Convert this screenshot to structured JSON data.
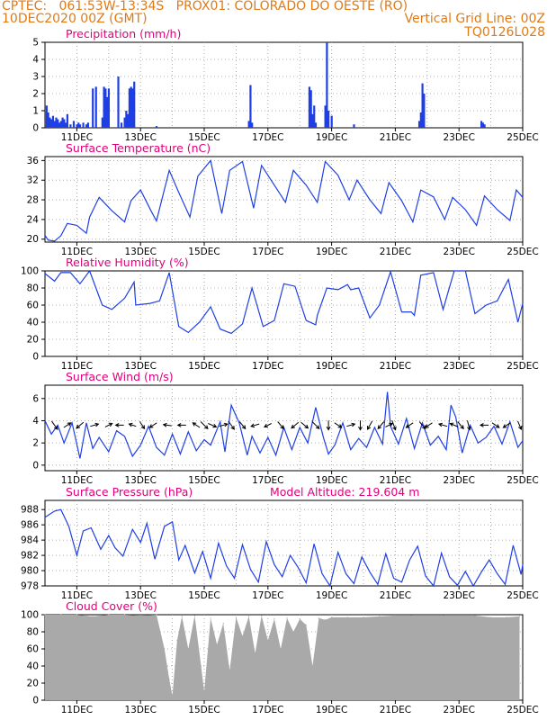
{
  "header": {
    "line1_left": "CPTEC:   061:53W-13:34S   PROX01: COLORADO DO OESTE (RO)",
    "line2_left": "10DEC2020 00Z (GMT)",
    "line2_right": "Vertical Grid Line: 00Z",
    "line3_right": "TQ0126L028"
  },
  "colors": {
    "header": "#e07a16",
    "title": "#e0007a",
    "series": "#1f3fe6",
    "cloud": "#a9a9a9",
    "arrow": "#000000",
    "grid": "#9a9a9a"
  },
  "chart_data": [
    {
      "type": "bar",
      "title": "Precipitation (mm/h)",
      "ylim": [
        0,
        5
      ],
      "yticks": [
        "0",
        "1",
        "2",
        "3",
        "4",
        "5"
      ],
      "xticks": [
        "11DEC",
        "13DEC",
        "15DEC",
        "17DEC",
        "19DEC",
        "21DEC",
        "23DEC",
        "25DEC"
      ],
      "xlim_days": [
        10,
        25
      ],
      "x_days": [
        10.05,
        10.1,
        10.15,
        10.2,
        10.25,
        10.3,
        10.35,
        10.4,
        10.45,
        10.5,
        10.55,
        10.6,
        10.65,
        10.7,
        10.8,
        10.9,
        11.0,
        11.05,
        11.1,
        11.2,
        11.3,
        11.35,
        11.5,
        11.6,
        11.8,
        11.85,
        11.9,
        11.95,
        12.0,
        12.3,
        12.4,
        12.5,
        12.55,
        12.6,
        12.65,
        12.7,
        12.75,
        12.8,
        13.5,
        16.4,
        16.45,
        16.5,
        18.3,
        18.35,
        18.4,
        18.45,
        18.5,
        18.8,
        18.85,
        18.9,
        19.0,
        19.7,
        21.75,
        21.8,
        21.85,
        21.9,
        23.7,
        23.75,
        23.8
      ],
      "values": [
        1.3,
        0.9,
        0.6,
        0.5,
        0.7,
        0.4,
        0.6,
        0.5,
        0.3,
        0.4,
        0.6,
        0.5,
        0.3,
        0.8,
        0.2,
        0.4,
        0.2,
        0.3,
        0.2,
        0.3,
        0.2,
        0.3,
        2.3,
        2.4,
        0.6,
        2.4,
        2.3,
        1.8,
        2.3,
        3.0,
        0.3,
        0.6,
        1.0,
        0.8,
        2.3,
        2.4,
        2.3,
        2.7,
        0.1,
        0.4,
        2.5,
        0.3,
        2.4,
        2.2,
        0.8,
        1.3,
        0.3,
        1.3,
        5.0,
        1.0,
        0.7,
        0.2,
        0.4,
        0.9,
        2.6,
        2.0,
        0.4,
        0.3,
        0.2
      ]
    },
    {
      "type": "line",
      "title": "Surface Temperature (nC)",
      "ylim": [
        19.4,
        36.8
      ],
      "yticks": [
        "20",
        "24",
        "28",
        "32",
        "36"
      ],
      "xticks": [
        "11DEC",
        "13DEC",
        "15DEC",
        "17DEC",
        "19DEC",
        "21DEC",
        "23DEC",
        "25DEC"
      ],
      "x_days": [
        10.0,
        10.1,
        10.3,
        10.5,
        10.7,
        11.0,
        11.3,
        11.4,
        11.7,
        12.1,
        12.5,
        12.7,
        13.0,
        13.35,
        13.5,
        13.9,
        14.2,
        14.55,
        14.8,
        15.2,
        15.55,
        15.8,
        16.2,
        16.55,
        16.8,
        17.2,
        17.55,
        17.8,
        18.2,
        18.55,
        18.8,
        19.2,
        19.55,
        19.8,
        20.2,
        20.55,
        20.8,
        21.2,
        21.55,
        21.8,
        22.2,
        22.55,
        22.8,
        23.2,
        23.55,
        23.8,
        24.2,
        24.6,
        24.8,
        25.0
      ],
      "values": [
        20.8,
        19.8,
        19.6,
        20.7,
        23.2,
        22.8,
        21.2,
        24.5,
        28.5,
        25.8,
        23.5,
        27.8,
        30.0,
        25.5,
        23.7,
        34.0,
        29.5,
        24.5,
        32.8,
        36.0,
        25.2,
        34.0,
        35.8,
        26.3,
        35.0,
        31.0,
        27.5,
        34.0,
        31.0,
        27.5,
        35.8,
        33.0,
        28.0,
        32.0,
        28.0,
        25.2,
        31.5,
        27.8,
        23.5,
        30.0,
        28.6,
        24.0,
        28.5,
        26.0,
        22.8,
        28.8,
        26.0,
        23.8,
        30.0,
        28.5
      ]
    },
    {
      "type": "line",
      "title": "Relative Humidity (%)",
      "ylim": [
        0,
        100
      ],
      "yticks": [
        "0",
        "20",
        "40",
        "60",
        "80",
        "100"
      ],
      "xticks": [
        "11DEC",
        "13DEC",
        "15DEC",
        "17DEC",
        "19DEC",
        "21DEC",
        "23DEC",
        "25DEC"
      ],
      "x_days": [
        10.0,
        10.3,
        10.5,
        10.8,
        11.1,
        11.4,
        11.8,
        12.1,
        12.5,
        12.8,
        12.85,
        13.3,
        13.6,
        13.9,
        14.2,
        14.5,
        14.85,
        15.2,
        15.5,
        15.85,
        16.2,
        16.5,
        16.85,
        17.2,
        17.5,
        17.85,
        18.2,
        18.5,
        18.55,
        18.85,
        19.2,
        19.5,
        19.6,
        19.85,
        20.2,
        20.5,
        20.85,
        21.2,
        21.5,
        21.6,
        21.8,
        22.2,
        22.5,
        22.85,
        23.2,
        23.5,
        23.85,
        24.2,
        24.55,
        24.85,
        25.0
      ],
      "values": [
        97,
        88,
        98,
        98,
        85,
        100,
        60,
        55,
        68,
        87,
        60,
        62,
        65,
        98,
        35,
        28,
        40,
        58,
        32,
        27,
        38,
        80,
        35,
        42,
        85,
        82,
        42,
        37,
        48,
        80,
        78,
        84,
        78,
        80,
        45,
        60,
        99,
        52,
        52,
        48,
        95,
        98,
        55,
        100,
        100,
        50,
        60,
        65,
        90,
        40,
        62
      ]
    },
    {
      "type": "line",
      "title": "Surface Wind (m/s)",
      "ylim": [
        -0.5,
        7.2
      ],
      "yticks": [
        "0",
        "2",
        "4",
        "6"
      ],
      "xticks": [
        "11DEC",
        "13DEC",
        "15DEC",
        "17DEC",
        "19DEC",
        "21DEC",
        "23DEC",
        "25DEC"
      ],
      "x_days": [
        10.0,
        10.2,
        10.4,
        10.6,
        10.85,
        11.1,
        11.3,
        11.5,
        11.7,
        12.0,
        12.25,
        12.5,
        12.75,
        13.0,
        13.25,
        13.5,
        13.75,
        14.0,
        14.25,
        14.5,
        14.75,
        15.0,
        15.2,
        15.5,
        15.65,
        15.85,
        16.1,
        16.35,
        16.5,
        16.75,
        17.0,
        17.25,
        17.5,
        17.75,
        18.0,
        18.25,
        18.5,
        18.75,
        18.9,
        19.1,
        19.35,
        19.6,
        19.85,
        20.1,
        20.35,
        20.6,
        20.75,
        20.85,
        21.1,
        21.35,
        21.6,
        21.85,
        22.1,
        22.35,
        22.6,
        22.75,
        22.9,
        23.1,
        23.35,
        23.6,
        23.85,
        24.1,
        24.35,
        24.6,
        24.85,
        25.0
      ],
      "values": [
        4.0,
        2.8,
        3.6,
        2.0,
        3.8,
        0.6,
        3.8,
        1.5,
        2.5,
        1.2,
        3.1,
        2.6,
        0.8,
        1.8,
        3.5,
        1.6,
        0.9,
        2.8,
        1.0,
        3.0,
        1.3,
        2.3,
        1.8,
        3.9,
        1.2,
        5.4,
        3.8,
        0.9,
        2.6,
        1.1,
        2.5,
        0.9,
        3.4,
        1.4,
        3.4,
        2.0,
        5.2,
        2.4,
        1.0,
        1.8,
        3.8,
        1.4,
        2.4,
        1.6,
        3.4,
        1.9,
        6.6,
        3.5,
        1.9,
        4.2,
        1.5,
        3.8,
        1.8,
        2.6,
        1.4,
        5.4,
        4.3,
        1.1,
        3.6,
        2.0,
        2.5,
        3.5,
        1.9,
        3.9,
        1.6,
        2.2
      ],
      "arrows": [
        {
          "x": 10.3,
          "u": 0.25,
          "v": -0.35
        },
        {
          "x": 10.7,
          "u": 0.3,
          "v": 0.2
        },
        {
          "x": 11.1,
          "u": -0.3,
          "v": -0.25
        },
        {
          "x": 11.55,
          "u": 0.35,
          "v": 0.1
        },
        {
          "x": 12.0,
          "u": 0.3,
          "v": 0.15
        },
        {
          "x": 12.35,
          "u": -0.35,
          "v": 0.0
        },
        {
          "x": 12.75,
          "u": -0.3,
          "v": 0.1
        },
        {
          "x": 13.05,
          "u": 0.2,
          "v": -0.3
        },
        {
          "x": 13.4,
          "u": -0.3,
          "v": -0.2
        },
        {
          "x": 13.85,
          "u": -0.35,
          "v": 0.05
        },
        {
          "x": 14.3,
          "u": -0.35,
          "v": 0.0
        },
        {
          "x": 14.75,
          "u": -0.3,
          "v": 0.2
        },
        {
          "x": 15.0,
          "u": 0.3,
          "v": -0.3
        },
        {
          "x": 15.25,
          "u": 0.35,
          "v": -0.15
        },
        {
          "x": 15.6,
          "u": 0.35,
          "v": 0.1
        },
        {
          "x": 15.85,
          "u": 0.25,
          "v": -0.35
        },
        {
          "x": 16.2,
          "u": 0.25,
          "v": -0.3
        },
        {
          "x": 16.6,
          "u": -0.35,
          "v": -0.1
        },
        {
          "x": 17.0,
          "u": -0.3,
          "v": -0.15
        },
        {
          "x": 17.4,
          "u": 0.25,
          "v": -0.3
        },
        {
          "x": 17.85,
          "u": -0.3,
          "v": -0.25
        },
        {
          "x": 18.15,
          "u": 0.3,
          "v": -0.25
        },
        {
          "x": 18.5,
          "u": 0.3,
          "v": -0.3
        },
        {
          "x": 18.9,
          "u": 0.0,
          "v": -0.4
        },
        {
          "x": 19.2,
          "u": 0.3,
          "v": -0.2
        },
        {
          "x": 19.6,
          "u": 0.35,
          "v": 0.1
        },
        {
          "x": 19.9,
          "u": 0.0,
          "v": -0.4
        },
        {
          "x": 20.2,
          "u": -0.2,
          "v": -0.35
        },
        {
          "x": 20.55,
          "u": -0.25,
          "v": -0.3
        },
        {
          "x": 20.8,
          "u": 0.3,
          "v": 0.15
        },
        {
          "x": 20.95,
          "u": 0.15,
          "v": -0.4
        },
        {
          "x": 21.45,
          "u": -0.3,
          "v": -0.2
        },
        {
          "x": 21.85,
          "u": 0.25,
          "v": -0.3
        },
        {
          "x": 22.05,
          "u": -0.3,
          "v": -0.2
        },
        {
          "x": 22.5,
          "u": -0.35,
          "v": 0.1
        },
        {
          "x": 22.85,
          "u": -0.35,
          "v": 0.15
        },
        {
          "x": 23.05,
          "u": 0.25,
          "v": -0.3
        },
        {
          "x": 23.3,
          "u": 0.1,
          "v": -0.4
        },
        {
          "x": 23.8,
          "u": -0.35,
          "v": 0.0
        },
        {
          "x": 24.15,
          "u": 0.3,
          "v": -0.2
        },
        {
          "x": 24.5,
          "u": -0.3,
          "v": -0.2
        },
        {
          "x": 24.9,
          "u": 0.15,
          "v": -0.35
        }
      ]
    },
    {
      "type": "line",
      "title": "Surface Pressure (hPa)",
      "subtitle": "Model Altitude: 219.604 m",
      "ylim": [
        978,
        989.2
      ],
      "yticks": [
        "978",
        "980",
        "982",
        "984",
        "986",
        "988"
      ],
      "xticks": [
        "11DEC",
        "13DEC",
        "15DEC",
        "17DEC",
        "19DEC",
        "21DEC",
        "23DEC",
        "25DEC"
      ],
      "x_days": [
        10.0,
        10.3,
        10.5,
        10.75,
        11.0,
        11.2,
        11.45,
        11.75,
        12.0,
        12.2,
        12.45,
        12.75,
        13.0,
        13.2,
        13.45,
        13.75,
        14.0,
        14.2,
        14.4,
        14.7,
        14.95,
        15.2,
        15.45,
        15.7,
        15.95,
        16.2,
        16.45,
        16.7,
        16.95,
        17.2,
        17.45,
        17.7,
        17.95,
        18.2,
        18.45,
        18.7,
        18.95,
        19.2,
        19.45,
        19.7,
        19.95,
        20.2,
        20.45,
        20.7,
        20.95,
        21.2,
        21.45,
        21.7,
        21.95,
        22.2,
        22.45,
        22.7,
        22.95,
        23.2,
        23.45,
        23.7,
        23.95,
        24.2,
        24.45,
        24.7,
        24.95,
        25.0
      ],
      "values": [
        987.0,
        987.8,
        988.0,
        985.8,
        982.0,
        985.2,
        985.6,
        982.8,
        984.6,
        983.0,
        981.9,
        985.4,
        983.7,
        986.2,
        981.5,
        985.8,
        986.4,
        981.4,
        983.3,
        979.7,
        982.5,
        979.0,
        983.6,
        980.6,
        979.0,
        983.4,
        980.2,
        978.5,
        983.8,
        980.8,
        979.2,
        982.0,
        980.4,
        978.4,
        983.5,
        979.6,
        978.0,
        982.4,
        979.6,
        978.3,
        981.8,
        979.8,
        978.2,
        982.2,
        979.0,
        978.5,
        981.4,
        983.2,
        979.3,
        978.0,
        982.3,
        979.2,
        978.1,
        979.9,
        978.0,
        979.8,
        981.4,
        979.6,
        978.2,
        983.3,
        979.5,
        980.8
      ]
    },
    {
      "type": "bar",
      "title": "Cloud Cover (%)",
      "ylim": [
        0,
        100
      ],
      "yticks": [
        "0",
        "20",
        "40",
        "60",
        "80",
        "100"
      ],
      "xticks": [
        "11DEC",
        "13DEC",
        "15DEC",
        "17DEC",
        "19DEC",
        "21DEC",
        "23DEC",
        "25DEC"
      ],
      "x_days": [
        10.0,
        10.5,
        11.0,
        11.5,
        12.0,
        12.5,
        13.0,
        13.5,
        13.75,
        13.9,
        14.0,
        14.15,
        14.3,
        14.5,
        14.7,
        14.9,
        15.0,
        15.2,
        15.4,
        15.6,
        15.8,
        16.0,
        16.2,
        16.4,
        16.6,
        16.8,
        17.0,
        17.2,
        17.4,
        17.6,
        17.8,
        18.0,
        18.2,
        18.4,
        18.6,
        18.8,
        19.0,
        19.5,
        20.0,
        20.5,
        21.0,
        21.5,
        22.0,
        22.5,
        23.0,
        23.5,
        24.0,
        24.5,
        24.9
      ],
      "values": [
        100,
        100,
        100,
        98,
        100,
        100,
        99,
        100,
        60,
        25,
        5,
        70,
        98,
        60,
        99,
        40,
        10,
        96,
        65,
        90,
        35,
        97,
        75,
        98,
        55,
        99,
        70,
        95,
        60,
        96,
        80,
        95,
        88,
        40,
        96,
        94,
        97,
        97,
        97,
        98,
        99,
        99,
        99,
        99,
        99,
        99,
        97,
        97,
        98
      ]
    }
  ]
}
